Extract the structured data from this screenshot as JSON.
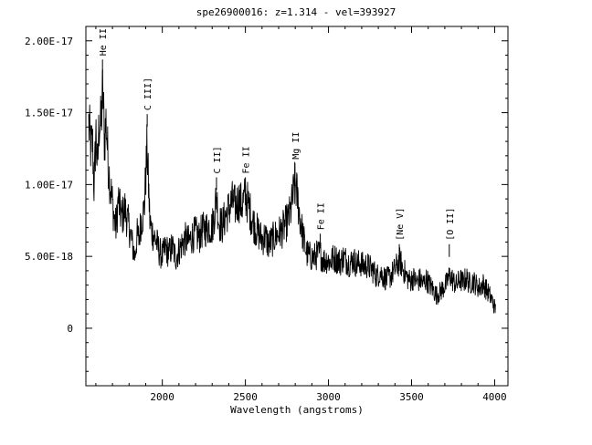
{
  "chart_data": {
    "type": "line",
    "title": "spe26900016: z=1.314 - vel=393927",
    "xlabel": "Wavelength (angstroms)",
    "ylabel": "",
    "xlim": [
      1540,
      4080
    ],
    "ylim": [
      -4e-18,
      2.1e-17
    ],
    "x_ticks": [
      {
        "value": 2000,
        "label": "2000"
      },
      {
        "value": 2500,
        "label": "2500"
      },
      {
        "value": 3000,
        "label": "3000"
      },
      {
        "value": 3500,
        "label": "3500"
      },
      {
        "value": 4000,
        "label": "4000"
      }
    ],
    "y_ticks": [
      {
        "value": 0,
        "label": "0"
      },
      {
        "value": 5e-18,
        "label": "5.00E-18"
      },
      {
        "value": 1e-17,
        "label": "1.00E-17"
      },
      {
        "value": 1.5e-17,
        "label": "1.50E-17"
      },
      {
        "value": 2e-17,
        "label": "2.00E-17"
      }
    ],
    "grid": false,
    "legend": "none",
    "line_color": "#000000",
    "annotations": [
      {
        "label": "He II",
        "x": 1640,
        "y": 1.87e-17
      },
      {
        "label": "C III]",
        "x": 1909,
        "y": 1.49e-17
      },
      {
        "label": "C II]",
        "x": 2326,
        "y": 1.05e-17
      },
      {
        "label": "Fe II",
        "x": 2500,
        "y": 1.05e-17
      },
      {
        "label": "Mg II",
        "x": 2798,
        "y": 1.15e-17
      },
      {
        "label": "Fe II",
        "x": 2950,
        "y": 6.58e-18
      },
      {
        "label": "[Ne V]",
        "x": 3426,
        "y": 5.85e-18
      },
      {
        "label": "[O II]",
        "x": 3727,
        "y": 5.85e-18
      }
    ],
    "series_points": [
      [
        1557,
        1.42e-17
      ],
      [
        1570,
        1.25e-17
      ],
      [
        1580,
        1.3e-17
      ],
      [
        1590,
        9.5e-18
      ],
      [
        1600,
        1.38e-17
      ],
      [
        1610,
        1.1e-17
      ],
      [
        1620,
        1.45e-17
      ],
      [
        1630,
        1.4e-17
      ],
      [
        1642,
        1.66e-17
      ],
      [
        1652,
        1.3e-17
      ],
      [
        1662,
        1.45e-17
      ],
      [
        1672,
        1.2e-17
      ],
      [
        1682,
        1.05e-17
      ],
      [
        1692,
        9.5e-18
      ],
      [
        1702,
        8.5e-18
      ],
      [
        1712,
        7.5e-18
      ],
      [
        1722,
        7e-18
      ],
      [
        1735,
        9e-18
      ],
      [
        1748,
        8e-18
      ],
      [
        1760,
        7.8e-18
      ],
      [
        1775,
        8.3e-18
      ],
      [
        1790,
        7.5e-18
      ],
      [
        1805,
        6.8e-18
      ],
      [
        1820,
        5.8e-18
      ],
      [
        1835,
        5e-18
      ],
      [
        1848,
        6.5e-18
      ],
      [
        1860,
        6.2e-18
      ],
      [
        1872,
        7.5e-18
      ],
      [
        1882,
        7.8e-18
      ],
      [
        1892,
        8.5e-18
      ],
      [
        1900,
        1.05e-17
      ],
      [
        1908,
        1.25e-17
      ],
      [
        1915,
        1.05e-17
      ],
      [
        1925,
        7.5e-18
      ],
      [
        1935,
        6.8e-18
      ],
      [
        1950,
        6.4e-18
      ],
      [
        1965,
        6e-18
      ],
      [
        1980,
        5.4e-18
      ],
      [
        2000,
        5e-18
      ],
      [
        2020,
        5.6e-18
      ],
      [
        2040,
        5.2e-18
      ],
      [
        2060,
        5.7e-18
      ],
      [
        2080,
        4.9e-18
      ],
      [
        2100,
        5.4e-18
      ],
      [
        2120,
        5.9e-18
      ],
      [
        2140,
        6.2e-18
      ],
      [
        2160,
        6e-18
      ],
      [
        2180,
        6.4e-18
      ],
      [
        2200,
        6.6e-18
      ],
      [
        2220,
        6.3e-18
      ],
      [
        2240,
        6.8e-18
      ],
      [
        2260,
        6.9e-18
      ],
      [
        2280,
        7.1e-18
      ],
      [
        2300,
        7e-18
      ],
      [
        2315,
        8.1e-18
      ],
      [
        2326,
        9.3e-18
      ],
      [
        2340,
        7.4e-18
      ],
      [
        2360,
        7.1e-18
      ],
      [
        2380,
        7.8e-18
      ],
      [
        2400,
        8.3e-18
      ],
      [
        2420,
        8.8e-18
      ],
      [
        2440,
        8.5e-18
      ],
      [
        2460,
        8.9e-18
      ],
      [
        2480,
        8.6e-18
      ],
      [
        2500,
        9.2e-18
      ],
      [
        2520,
        8.5e-18
      ],
      [
        2540,
        7.6e-18
      ],
      [
        2560,
        7e-18
      ],
      [
        2580,
        6.6e-18
      ],
      [
        2600,
        6.2e-18
      ],
      [
        2620,
        6.4e-18
      ],
      [
        2640,
        5.8e-18
      ],
      [
        2660,
        6.1e-18
      ],
      [
        2680,
        6.4e-18
      ],
      [
        2700,
        6.6e-18
      ],
      [
        2720,
        6.8e-18
      ],
      [
        2740,
        7.2e-18
      ],
      [
        2760,
        7.6e-18
      ],
      [
        2775,
        8.3e-18
      ],
      [
        2790,
        9.5e-18
      ],
      [
        2800,
        1.01e-17
      ],
      [
        2810,
        9.4e-18
      ],
      [
        2825,
        8e-18
      ],
      [
        2840,
        6.9e-18
      ],
      [
        2855,
        5.9e-18
      ],
      [
        2870,
        5.2e-18
      ],
      [
        2890,
        5e-18
      ],
      [
        2910,
        4.9e-18
      ],
      [
        2930,
        5.1e-18
      ],
      [
        2950,
        5.2e-18
      ],
      [
        2970,
        4.7e-18
      ],
      [
        2990,
        4.8e-18
      ],
      [
        3010,
        4.6e-18
      ],
      [
        3030,
        4.9e-18
      ],
      [
        3050,
        4.8e-18
      ],
      [
        3070,
        4.6e-18
      ],
      [
        3090,
        4.9e-18
      ],
      [
        3110,
        4.7e-18
      ],
      [
        3130,
        4.5e-18
      ],
      [
        3150,
        4.8e-18
      ],
      [
        3170,
        4.4e-18
      ],
      [
        3190,
        4.6e-18
      ],
      [
        3210,
        4.3e-18
      ],
      [
        3230,
        4.4e-18
      ],
      [
        3250,
        4.2e-18
      ],
      [
        3270,
        4e-18
      ],
      [
        3290,
        3.6e-18
      ],
      [
        3310,
        3.9e-18
      ],
      [
        3330,
        3.6e-18
      ],
      [
        3350,
        3.4e-18
      ],
      [
        3370,
        3.6e-18
      ],
      [
        3390,
        3.9e-18
      ],
      [
        3410,
        4.3e-18
      ],
      [
        3430,
        4.7e-18
      ],
      [
        3450,
        4.1e-18
      ],
      [
        3470,
        3.6e-18
      ],
      [
        3490,
        3.3e-18
      ],
      [
        3510,
        3.5e-18
      ],
      [
        3530,
        3.2e-18
      ],
      [
        3550,
        3.4e-18
      ],
      [
        3570,
        3.1e-18
      ],
      [
        3590,
        3.4e-18
      ],
      [
        3610,
        3e-18
      ],
      [
        3630,
        2.7e-18
      ],
      [
        3650,
        2.3e-18
      ],
      [
        3670,
        2.5e-18
      ],
      [
        3690,
        2.8e-18
      ],
      [
        3710,
        3.1e-18
      ],
      [
        3730,
        3.7e-18
      ],
      [
        3750,
        3.3e-18
      ],
      [
        3770,
        3e-18
      ],
      [
        3790,
        3.4e-18
      ],
      [
        3810,
        3.2e-18
      ],
      [
        3830,
        3.5e-18
      ],
      [
        3850,
        3.1e-18
      ],
      [
        3870,
        3.3e-18
      ],
      [
        3890,
        3e-18
      ],
      [
        3910,
        2.8e-18
      ],
      [
        3930,
        3.1e-18
      ],
      [
        3950,
        2.7e-18
      ],
      [
        3970,
        2.3e-18
      ],
      [
        3990,
        1.8e-18
      ],
      [
        4005,
        1.3e-18
      ]
    ]
  }
}
